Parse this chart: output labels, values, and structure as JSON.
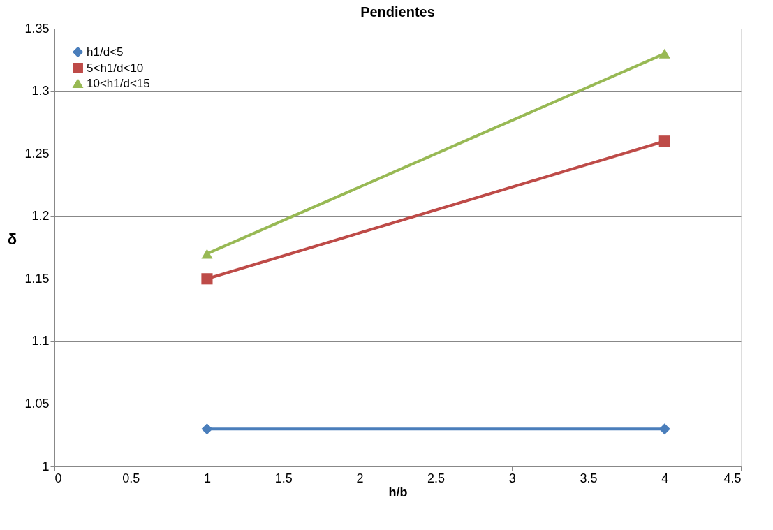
{
  "chart_data": {
    "type": "line",
    "title": "Pendientes",
    "xlabel": "h/b",
    "ylabel": "δ",
    "x": [
      1,
      4
    ],
    "series": [
      {
        "name": "h1/d<5",
        "color": "#4a7ebb",
        "values": [
          1.03,
          1.03
        ],
        "marker": "diamond"
      },
      {
        "name": "5<h1/d<10",
        "color": "#be4b48",
        "values": [
          1.15,
          1.26
        ],
        "marker": "square"
      },
      {
        "name": "10<h1/d<15",
        "color": "#98b954",
        "values": [
          1.17,
          1.33
        ],
        "marker": "triangle"
      }
    ],
    "xlim": [
      0,
      4.5
    ],
    "xticks": [
      0,
      0.5,
      1,
      1.5,
      2,
      2.5,
      3,
      3.5,
      4,
      4.5
    ],
    "ylim": [
      1,
      1.35
    ],
    "yticks": [
      1,
      1.05,
      1.1,
      1.15,
      1.2,
      1.25,
      1.3,
      1.35
    ],
    "grid": "y",
    "legend": "top left",
    "line_style": "solid"
  }
}
